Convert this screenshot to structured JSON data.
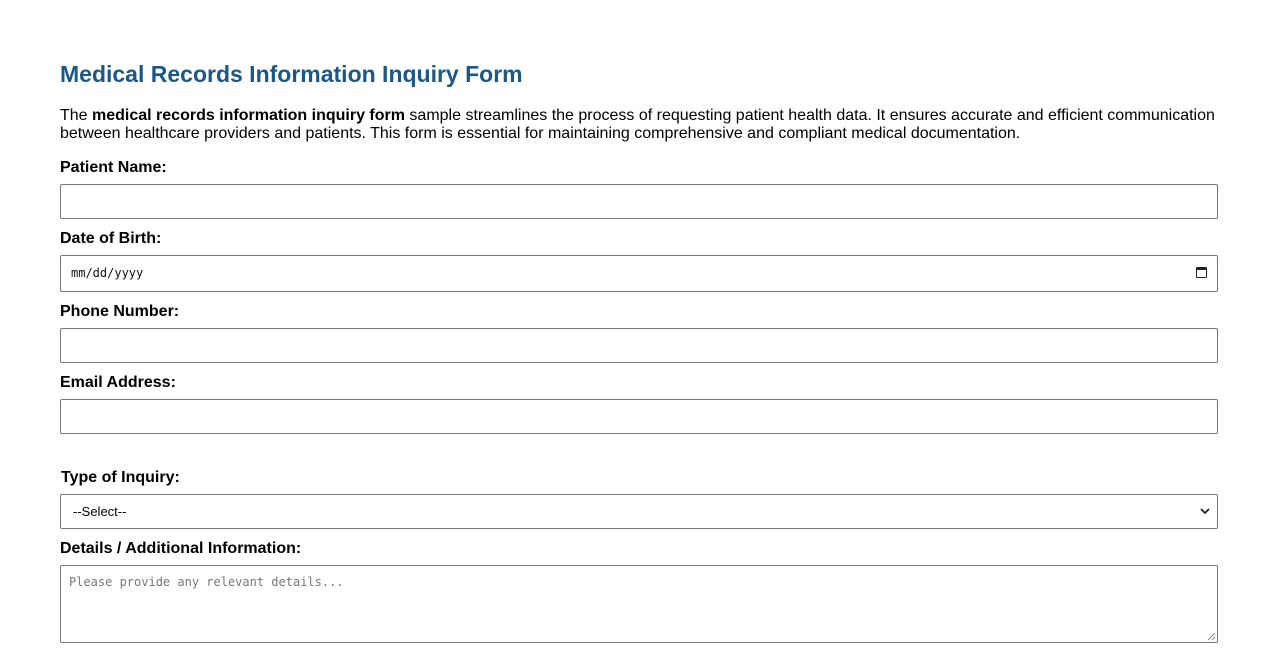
{
  "title": "Medical Records Information Inquiry Form",
  "intro": {
    "prefix": "The ",
    "bold": "medical records information inquiry form",
    "suffix": " sample streamlines the process of requesting patient health data. It ensures accurate and efficient communication between healthcare providers and patients. This form is essential for maintaining comprehensive and compliant medical documentation."
  },
  "fields": {
    "patient_name": {
      "label": "Patient Name:",
      "value": ""
    },
    "dob": {
      "label": "Date of Birth:",
      "placeholder": "mm/dd/yyyy"
    },
    "phone": {
      "label": "Phone Number:",
      "value": ""
    },
    "email": {
      "label": "Email Address:",
      "value": ""
    },
    "inquiry_type": {
      "label": "Type of Inquiry:",
      "selected": "--Select--"
    },
    "details": {
      "label": "Details / Additional Information:",
      "placeholder": "Please provide any relevant details..."
    }
  },
  "colors": {
    "title": "#1b5887",
    "border": "#767676"
  }
}
